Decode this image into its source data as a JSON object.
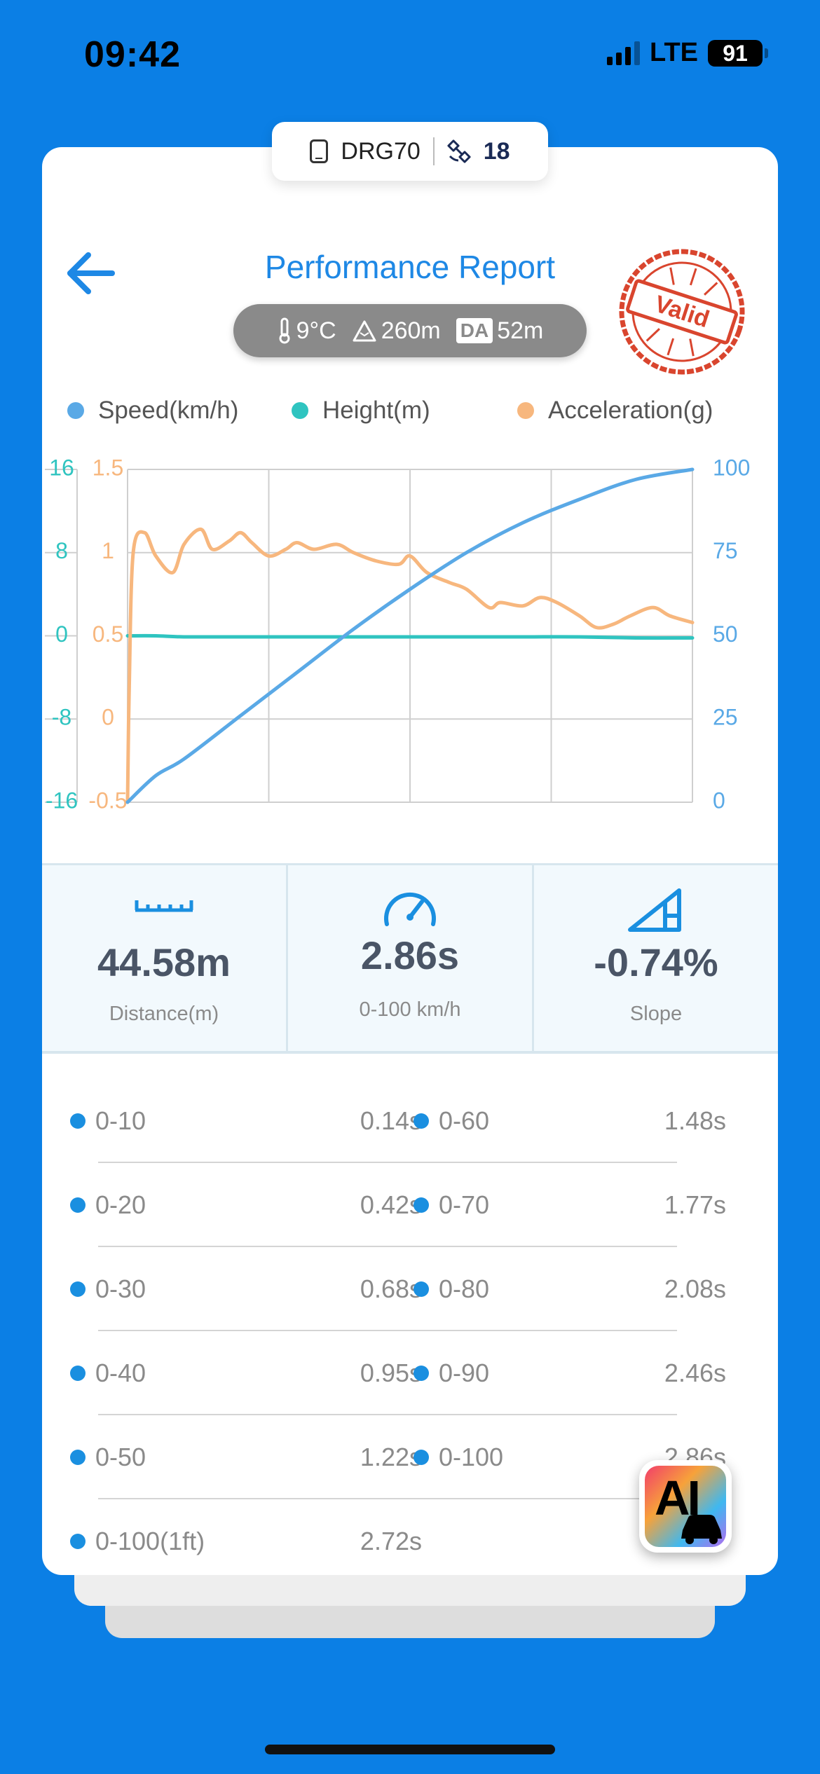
{
  "status_bar": {
    "time": "09:42",
    "network": "LTE",
    "battery": "91"
  },
  "device": {
    "name": "DRG70",
    "satellites": "18"
  },
  "header": {
    "title": "Performance Report",
    "temperature": "9°C",
    "altitude": "260m",
    "density_altitude_label": "DA",
    "density_altitude": "52m",
    "stamp_text": "Valid"
  },
  "legend": [
    {
      "label": "Speed(km/h)",
      "color": "#5aa9e6"
    },
    {
      "label": "Height(m)",
      "color": "#2fc4c0"
    },
    {
      "label": "Acceleration(g)",
      "color": "#f7b77e"
    }
  ],
  "chart_data": {
    "type": "line",
    "x": [
      0,
      0.05,
      0.1,
      0.2,
      0.3,
      0.4,
      0.5,
      0.6,
      0.7,
      0.8,
      0.9,
      1.0
    ],
    "series": [
      {
        "name": "Speed(km/h)",
        "axis": "right",
        "color": "#5aa9e6",
        "values": [
          0,
          8,
          13,
          26,
          39,
          52,
          64,
          75,
          84,
          91,
          97,
          100
        ]
      },
      {
        "name": "Height(m)",
        "axis": "far-left",
        "color": "#2fc4c0",
        "values": [
          0,
          0,
          -0.1,
          -0.1,
          -0.1,
          -0.1,
          -0.1,
          -0.1,
          -0.1,
          -0.1,
          -0.2,
          -0.2
        ]
      },
      {
        "name": "Acceleration(g)",
        "axis": "left",
        "color": "#f7b77e",
        "x": [
          0,
          0.003,
          0.01,
          0.03,
          0.05,
          0.08,
          0.1,
          0.13,
          0.15,
          0.18,
          0.2,
          0.22,
          0.25,
          0.28,
          0.3,
          0.33,
          0.37,
          0.4,
          0.44,
          0.48,
          0.5,
          0.53,
          0.57,
          0.6,
          0.64,
          0.66,
          0.7,
          0.73,
          0.76,
          0.8,
          0.83,
          0.86,
          0.89,
          0.93,
          0.96,
          1.0
        ],
        "values": [
          -0.5,
          0.2,
          1.0,
          1.12,
          0.98,
          0.88,
          1.05,
          1.14,
          1.02,
          1.07,
          1.12,
          1.06,
          0.98,
          1.02,
          1.06,
          1.02,
          1.05,
          1.0,
          0.95,
          0.93,
          0.98,
          0.88,
          0.82,
          0.78,
          0.67,
          0.7,
          0.68,
          0.73,
          0.7,
          0.62,
          0.55,
          0.57,
          0.62,
          0.67,
          0.62,
          0.58
        ]
      }
    ],
    "axes": {
      "far_left": {
        "ticks": [
          "16",
          "8",
          "0",
          "-8",
          "-16"
        ],
        "range": [
          -16,
          16
        ]
      },
      "left": {
        "ticks": [
          "1.5",
          "1",
          "0.5",
          "0",
          "-0.5"
        ],
        "range": [
          -0.5,
          1.5
        ]
      },
      "right": {
        "ticks": [
          "100",
          "75",
          "50",
          "25",
          "0"
        ],
        "range": [
          0,
          100
        ]
      }
    },
    "grid": true,
    "legend_position": "top"
  },
  "stats": [
    {
      "icon": "ruler-icon",
      "value": "44.58m",
      "label": "Distance(m)"
    },
    {
      "icon": "speedometer-icon",
      "value": "2.86s",
      "label": "0-100 km/h"
    },
    {
      "icon": "slope-icon",
      "value": "-0.74%",
      "label": "Slope"
    }
  ],
  "splits": [
    {
      "left_label": "0-10",
      "left_time": "0.14s",
      "right_label": "0-60",
      "right_time": "1.48s"
    },
    {
      "left_label": "0-20",
      "left_time": "0.42s",
      "right_label": "0-70",
      "right_time": "1.77s"
    },
    {
      "left_label": "0-30",
      "left_time": "0.68s",
      "right_label": "0-80",
      "right_time": "2.08s"
    },
    {
      "left_label": "0-40",
      "left_time": "0.95s",
      "right_label": "0-90",
      "right_time": "2.46s"
    },
    {
      "left_label": "0-50",
      "left_time": "1.22s",
      "right_label": "0-100",
      "right_time": "2.86s"
    },
    {
      "left_label": "0-100(1ft)",
      "left_time": "2.72s"
    }
  ],
  "ai_button": {
    "label": "AI"
  }
}
